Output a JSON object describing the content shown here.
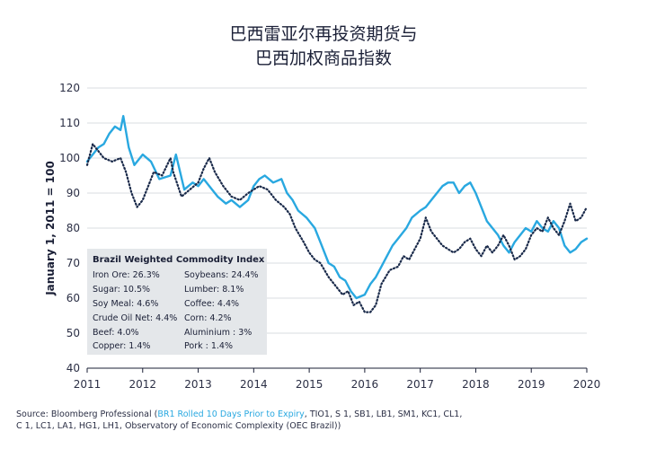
{
  "title_line1": "巴西雷亚尔再投资期货与",
  "title_line2": "巴西加权商品指数",
  "colors": {
    "light_blue": "#29a8e0",
    "navy": "#1a2a4a",
    "grid": "#d9dce0",
    "legend_bg": "#e4e7ea"
  },
  "legend": {
    "title": "Brazil Weighted Commodity Index",
    "items": [
      "Iron Ore: 26.3%",
      "Soybeans: 24.4%",
      "Sugar: 10.5%",
      "Lumber: 8.1%",
      "Soy Meal: 4.6%",
      "Coffee: 4.4%",
      "Crude Oil Net: 4.4%",
      "Corn: 4.2%",
      "Beef: 4.0%",
      "Aluminium : 3%",
      "Copper: 1.4%",
      "Pork : 1.4%"
    ]
  },
  "source": {
    "prefix": "Source: Bloomberg Professional (",
    "highlight": "BR1 Rolled 10 Days Prior to Expiry",
    "suffix": ", TIO1, S 1, SB1, LB1, SM1, KC1, CL1,",
    "line2": "C 1, LC1, LA1, HG1, LH1, Observatory of Economic Complexity (OEC Brazil))"
  },
  "chart_data": {
    "type": "line",
    "ylabel": "January 1, 2011 = 100",
    "ylim": [
      40,
      120
    ],
    "yticks": [
      40,
      50,
      60,
      70,
      80,
      90,
      100,
      110,
      120
    ],
    "xlim": [
      2011,
      2020
    ],
    "xticks": [
      "2011",
      "2012",
      "2013",
      "2014",
      "2015",
      "2016",
      "2017",
      "2018",
      "2019",
      "2020"
    ],
    "grid": true,
    "series": [
      {
        "line_style": "solid",
        "color": "#29a8e0",
        "x": [
          2011.0,
          2011.1,
          2011.2,
          2011.3,
          2011.4,
          2011.5,
          2011.6,
          2011.65,
          2011.75,
          2011.85,
          2012.0,
          2012.15,
          2012.3,
          2012.5,
          2012.6,
          2012.75,
          2012.9,
          2013.0,
          2013.1,
          2013.25,
          2013.35,
          2013.5,
          2013.6,
          2013.75,
          2013.9,
          2014.0,
          2014.1,
          2014.2,
          2014.35,
          2014.5,
          2014.6,
          2014.7,
          2014.8,
          2014.95,
          2015.1,
          2015.2,
          2015.35,
          2015.45,
          2015.55,
          2015.65,
          2015.75,
          2015.85,
          2016.0,
          2016.1,
          2016.2,
          2016.3,
          2016.4,
          2016.5,
          2016.6,
          2016.75,
          2016.85,
          2017.0,
          2017.1,
          2017.2,
          2017.3,
          2017.4,
          2017.5,
          2017.6,
          2017.7,
          2017.8,
          2017.9,
          2018.0,
          2018.1,
          2018.2,
          2018.3,
          2018.4,
          2018.5,
          2018.6,
          2018.7,
          2018.8,
          2018.9,
          2019.0,
          2019.1,
          2019.2,
          2019.3,
          2019.4,
          2019.5,
          2019.6,
          2019.7,
          2019.8,
          2019.9,
          2020.0
        ],
        "y": [
          99,
          101,
          103,
          104,
          107,
          109,
          108,
          112,
          103,
          98,
          101,
          99,
          94,
          95,
          101,
          91,
          93,
          92,
          94,
          91,
          89,
          87,
          88,
          86,
          88,
          92,
          94,
          95,
          93,
          94,
          90,
          88,
          85,
          83,
          80,
          76,
          70,
          69,
          66,
          65,
          62,
          60,
          61,
          64,
          66,
          69,
          72,
          75,
          77,
          80,
          83,
          85,
          86,
          88,
          90,
          92,
          93,
          93,
          90,
          92,
          93,
          90,
          86,
          82,
          80,
          78,
          75,
          73,
          76,
          78,
          80,
          79,
          82,
          80,
          79,
          82,
          80,
          75,
          73,
          74,
          76,
          77
        ]
      },
      {
        "line_style": "dotted",
        "color": "#1a2a4a",
        "x": [
          2011.0,
          2011.1,
          2011.2,
          2011.3,
          2011.45,
          2011.6,
          2011.7,
          2011.8,
          2011.9,
          2012.0,
          2012.1,
          2012.2,
          2012.35,
          2012.5,
          2012.55,
          2012.7,
          2012.85,
          2013.0,
          2013.1,
          2013.2,
          2013.3,
          2013.45,
          2013.6,
          2013.75,
          2013.9,
          2014.0,
          2014.1,
          2014.25,
          2014.4,
          2014.55,
          2014.65,
          2014.75,
          2014.9,
          2015.0,
          2015.1,
          2015.2,
          2015.35,
          2015.5,
          2015.6,
          2015.7,
          2015.8,
          2015.9,
          2016.0,
          2016.1,
          2016.2,
          2016.3,
          2016.45,
          2016.6,
          2016.7,
          2016.8,
          2016.9,
          2017.0,
          2017.1,
          2017.2,
          2017.3,
          2017.4,
          2017.5,
          2017.6,
          2017.7,
          2017.8,
          2017.9,
          2018.0,
          2018.1,
          2018.2,
          2018.3,
          2018.4,
          2018.5,
          2018.6,
          2018.7,
          2018.8,
          2018.9,
          2019.0,
          2019.1,
          2019.2,
          2019.3,
          2019.4,
          2019.5,
          2019.6,
          2019.7,
          2019.8,
          2019.9,
          2020.0
        ],
        "y": [
          98,
          104,
          102,
          100,
          99,
          100,
          96,
          90,
          86,
          88,
          92,
          96,
          95,
          100,
          96,
          89,
          91,
          93,
          97,
          100,
          96,
          92,
          89,
          88,
          90,
          91,
          92,
          91,
          88,
          86,
          84,
          80,
          76,
          73,
          71,
          70,
          66,
          63,
          61,
          62,
          58,
          59,
          56,
          56,
          58,
          64,
          68,
          69,
          72,
          71,
          74,
          77,
          83,
          79,
          77,
          75,
          74,
          73,
          74,
          76,
          77,
          74,
          72,
          75,
          73,
          75,
          78,
          75,
          71,
          72,
          74,
          78,
          80,
          79,
          83,
          80,
          78,
          82,
          87,
          82,
          83,
          86
        ]
      }
    ]
  }
}
